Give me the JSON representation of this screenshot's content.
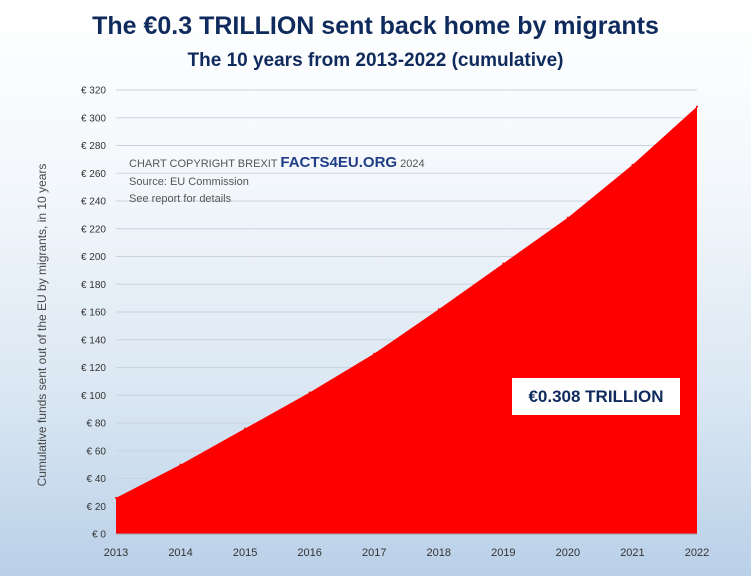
{
  "header": {
    "title": "The €0.3 TRILLION sent back home by migrants",
    "subtitle": "The 10 years from 2013-2022 (cumulative)"
  },
  "annotation": {
    "copyright_prefix": "CHART COPYRIGHT BREXIT",
    "brand": "FACTS4EU.ORG",
    "year": "2024",
    "source": "Source: EU Commission",
    "note": "See report for details"
  },
  "callout": {
    "text": "€0.308 TRILLION"
  },
  "colors": {
    "area": "#ff0000",
    "title": "#0f2a5c",
    "brand": "#1f3c86",
    "grid": "#c9d3de"
  },
  "chart_data": {
    "type": "area",
    "title": "The €0.3 TRILLION sent back home by migrants",
    "subtitle": "The 10 years from 2013-2022 (cumulative)",
    "xlabel": "",
    "ylabel": "Cumulative funds sent out of the EU by migrants, in 10 years",
    "x": [
      "2013",
      "2014",
      "2015",
      "2016",
      "2017",
      "2018",
      "2019",
      "2020",
      "2021",
      "2022"
    ],
    "values": [
      26,
      50,
      76,
      102,
      130,
      162,
      195,
      228,
      266,
      308
    ],
    "ylim": [
      0,
      320
    ],
    "yticks": [
      "€ 0",
      "€ 20",
      "€ 40",
      "€ 60",
      "€ 80",
      "€ 100",
      "€ 120",
      "€ 140",
      "€ 160",
      "€ 180",
      "€ 200",
      "€ 220",
      "€ 240",
      "€ 260",
      "€ 280",
      "€ 300",
      "€ 320"
    ],
    "grid": true,
    "legend": "none"
  }
}
